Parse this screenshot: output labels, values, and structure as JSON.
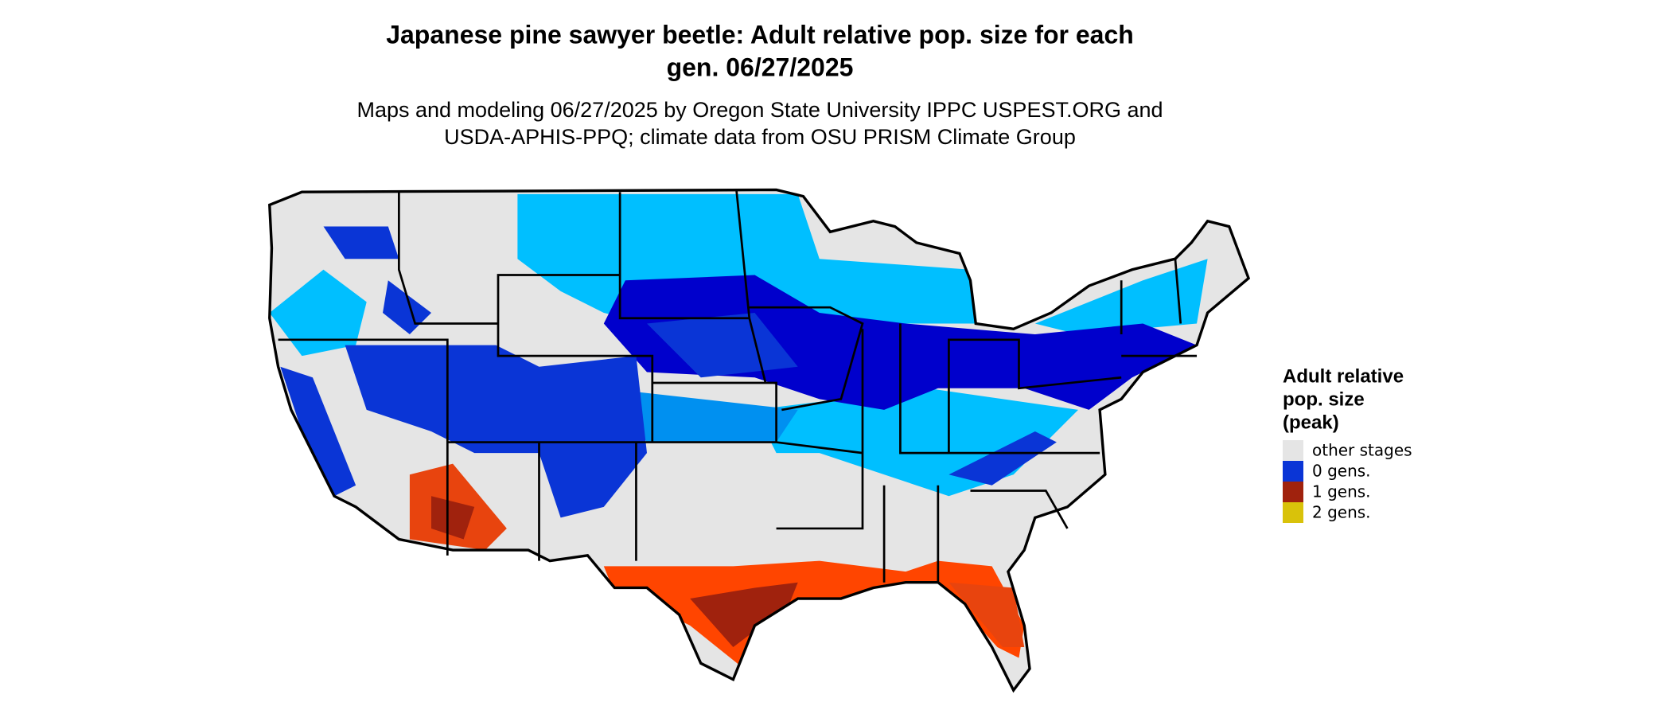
{
  "title": [
    "Japanese pine sawyer beetle: Adult relative pop. size for each",
    "gen. 06/27/2025"
  ],
  "subtitle": [
    "Maps and modeling 06/27/2025 by Oregon State University IPPC USPEST.ORG and",
    "USDA-APHIS-PPQ; climate data from OSU PRISM Climate Group"
  ],
  "legend": {
    "title": [
      "Adult relative",
      "pop. size",
      "(peak)"
    ],
    "items": [
      {
        "label": "other stages",
        "color": "#e5e5e5"
      },
      {
        "label": "0 gens.",
        "color": "#0a35d6"
      },
      {
        "label": "1 gens.",
        "color": "#a0220d"
      },
      {
        "label": "2 gens.",
        "color": "#d9c20a"
      }
    ]
  }
}
